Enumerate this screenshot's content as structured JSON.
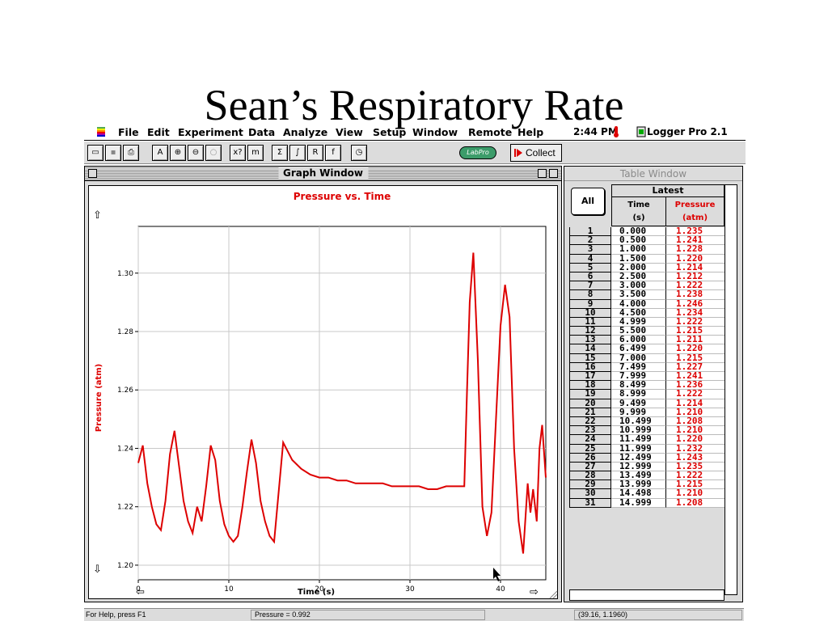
{
  "slide": {
    "title": "Sean’s Respiratory Rate"
  },
  "menubar": {
    "items": [
      "File",
      "Edit",
      "Experiment",
      "Data",
      "Analyze",
      "View",
      "Setup",
      "Window",
      "Remote",
      "Help"
    ],
    "clock": "2:44 PM",
    "app_name": "Logger Pro 2.1"
  },
  "toolbar": {
    "labpro_label": "LabPro",
    "collect_label": "Collect"
  },
  "graph_window": {
    "title": "Graph Window",
    "chart_title": "Pressure vs. Time"
  },
  "chart_data": {
    "type": "line",
    "title": "Pressure vs. Time",
    "xlabel": "Time (s)",
    "ylabel": "Pressure (atm)",
    "xlim": [
      0,
      45
    ],
    "ylim": [
      1.195,
      1.316
    ],
    "xticks": [
      0,
      10,
      20,
      30,
      40
    ],
    "yticks": [
      1.2,
      1.22,
      1.24,
      1.26,
      1.28,
      1.3
    ],
    "ytick_labels": [
      "1.20",
      "1.22",
      "1.24",
      "1.26",
      "1.28",
      "1.30"
    ],
    "grid": true,
    "color": "#dd0000",
    "series": [
      {
        "x": [
          0,
          0.5,
          1,
          1.5,
          2,
          2.5,
          3,
          3.5,
          4,
          4.5,
          5,
          5.5,
          6,
          6.5,
          7,
          7.5,
          8,
          8.5,
          9,
          9.5,
          10,
          10.5,
          11,
          11.5,
          12,
          12.5,
          13,
          13.5,
          14,
          14.5,
          15,
          15.5,
          16,
          16.5,
          17,
          18,
          19,
          20,
          21,
          22,
          23,
          24,
          25,
          26,
          27,
          28,
          29,
          30,
          31,
          32,
          33,
          34,
          35,
          35.5,
          36,
          36.3,
          36.6,
          37,
          37.5,
          38,
          38.5,
          39,
          39.5,
          40,
          40.5,
          41,
          41.5,
          42,
          42.5,
          43,
          43.3,
          43.6,
          44,
          44.3,
          44.6,
          45
        ],
        "y": [
          1.235,
          1.241,
          1.228,
          1.22,
          1.214,
          1.212,
          1.222,
          1.238,
          1.246,
          1.234,
          1.222,
          1.215,
          1.211,
          1.22,
          1.215,
          1.227,
          1.241,
          1.236,
          1.222,
          1.214,
          1.21,
          1.208,
          1.21,
          1.22,
          1.232,
          1.243,
          1.235,
          1.222,
          1.215,
          1.21,
          1.208,
          1.225,
          1.242,
          1.239,
          1.236,
          1.233,
          1.231,
          1.23,
          1.23,
          1.229,
          1.229,
          1.228,
          1.228,
          1.228,
          1.228,
          1.227,
          1.227,
          1.227,
          1.227,
          1.226,
          1.226,
          1.227,
          1.227,
          1.227,
          1.227,
          1.26,
          1.29,
          1.307,
          1.27,
          1.22,
          1.21,
          1.218,
          1.25,
          1.282,
          1.296,
          1.285,
          1.24,
          1.215,
          1.204,
          1.228,
          1.218,
          1.226,
          1.215,
          1.24,
          1.248,
          1.23
        ]
      }
    ]
  },
  "table_window": {
    "title": "Table Window",
    "all_button": "All",
    "group": "Latest",
    "col_time": "Time",
    "col_time_unit": "(s)",
    "col_pressure": "Pressure",
    "col_pressure_unit": "(atm)",
    "rows": [
      [
        "1",
        "0.000",
        "1.235"
      ],
      [
        "2",
        "0.500",
        "1.241"
      ],
      [
        "3",
        "1.000",
        "1.228"
      ],
      [
        "4",
        "1.500",
        "1.220"
      ],
      [
        "5",
        "2.000",
        "1.214"
      ],
      [
        "6",
        "2.500",
        "1.212"
      ],
      [
        "7",
        "3.000",
        "1.222"
      ],
      [
        "8",
        "3.500",
        "1.238"
      ],
      [
        "9",
        "4.000",
        "1.246"
      ],
      [
        "10",
        "4.500",
        "1.234"
      ],
      [
        "11",
        "4.999",
        "1.222"
      ],
      [
        "12",
        "5.500",
        "1.215"
      ],
      [
        "13",
        "6.000",
        "1.211"
      ],
      [
        "14",
        "6.499",
        "1.220"
      ],
      [
        "15",
        "7.000",
        "1.215"
      ],
      [
        "16",
        "7.499",
        "1.227"
      ],
      [
        "17",
        "7.999",
        "1.241"
      ],
      [
        "18",
        "8.499",
        "1.236"
      ],
      [
        "19",
        "8.999",
        "1.222"
      ],
      [
        "20",
        "9.499",
        "1.214"
      ],
      [
        "21",
        "9.999",
        "1.210"
      ],
      [
        "22",
        "10.499",
        "1.208"
      ],
      [
        "23",
        "10.999",
        "1.210"
      ],
      [
        "24",
        "11.499",
        "1.220"
      ],
      [
        "25",
        "11.999",
        "1.232"
      ],
      [
        "26",
        "12.499",
        "1.243"
      ],
      [
        "27",
        "12.999",
        "1.235"
      ],
      [
        "28",
        "13.499",
        "1.222"
      ],
      [
        "29",
        "13.999",
        "1.215"
      ],
      [
        "30",
        "14.498",
        "1.210"
      ],
      [
        "31",
        "14.999",
        "1.208"
      ]
    ]
  },
  "statusbar": {
    "help": "For Help, press F1",
    "readout": "Pressure = 0.992",
    "coords": "(39.16, 1.1960)"
  }
}
